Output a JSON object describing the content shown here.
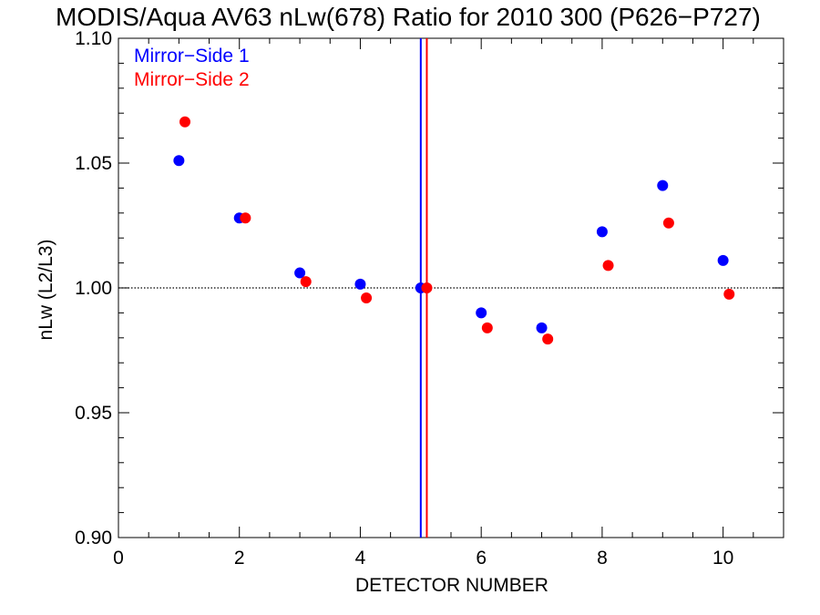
{
  "chart_data": {
    "type": "scatter",
    "title": "MODIS/Aqua AV63 nLw(678) Ratio for 2010 300 (P626−P727)",
    "xlabel": "DETECTOR NUMBER",
    "ylabel": "nLw (L2/L3)",
    "xlim": [
      0,
      11
    ],
    "ylim": [
      0.9,
      1.1
    ],
    "x_ticks": [
      0,
      2,
      4,
      6,
      8,
      10
    ],
    "x_tick_labels": [
      "0",
      "2",
      "4",
      "6",
      "8",
      "10"
    ],
    "y_ticks": [
      0.9,
      0.95,
      1.0,
      1.05,
      1.1
    ],
    "y_tick_labels": [
      "0.90",
      "0.95",
      "1.00",
      "1.05",
      "1.10"
    ],
    "reference_line": {
      "y": 1.0,
      "style": "dotted",
      "color": "#000000"
    },
    "vertical_lines": [
      {
        "x": 5.0,
        "color": "#0000ff"
      },
      {
        "x": 5.1,
        "color": "#ff0000"
      }
    ],
    "legend_placement": "top-left",
    "series": [
      {
        "name": "Mirror−Side 1",
        "color": "#0000ff",
        "x": [
          1,
          2,
          3,
          4,
          5,
          6,
          7,
          8,
          9,
          10
        ],
        "y": [
          1.051,
          1.028,
          1.006,
          1.0015,
          1.0,
          0.99,
          0.984,
          1.0225,
          1.041,
          1.011
        ]
      },
      {
        "name": "Mirror−Side 2",
        "color": "#ff0000",
        "x": [
          1.1,
          2.1,
          3.1,
          4.1,
          5.1,
          6.1,
          7.1,
          8.1,
          9.1,
          10.1
        ],
        "y": [
          1.0665,
          1.028,
          1.0025,
          0.996,
          1.0,
          0.984,
          0.9795,
          1.009,
          1.026,
          0.9975
        ]
      }
    ]
  }
}
